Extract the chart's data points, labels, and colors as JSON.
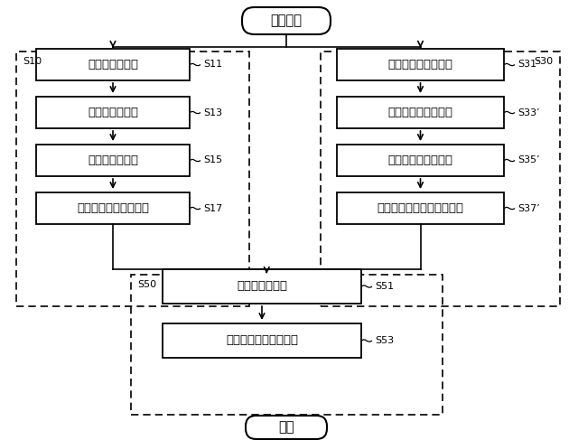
{
  "title": "スタート",
  "end_label": "終了",
  "left_group_label": "S10",
  "right_group_label": "S30",
  "bottom_group_label": "S50",
  "left_boxes": [
    {
      "text": "ウェブ製造段階",
      "label": "S11"
    },
    {
      "text": "ウェブ予熱段階",
      "label": "S13"
    },
    {
      "text": "ウェブ成型段階",
      "label": "S15"
    },
    {
      "text": "ウェブトリミング段階",
      "label": "S17"
    }
  ],
  "right_boxes": [
    {
      "text": "繊維パッド準備段階",
      "label": "S31’"
    },
    {
      "text": "繊維パッド予熱段階",
      "label": "S33’"
    },
    {
      "text": "繊維パッド成型段階",
      "label": "S35’"
    },
    {
      "text": "繊維パッドトリミング段階",
      "label": "S37’"
    }
  ],
  "bottom_boxes": [
    {
      "text": "接着剤塗布段階",
      "label": "S51"
    },
    {
      "text": "吸音パッド層附着段階",
      "label": "S53"
    }
  ],
  "font_size_box": 9.5,
  "font_size_label": 8.0,
  "font_size_group": 8.0,
  "font_size_terminal": 10.5
}
